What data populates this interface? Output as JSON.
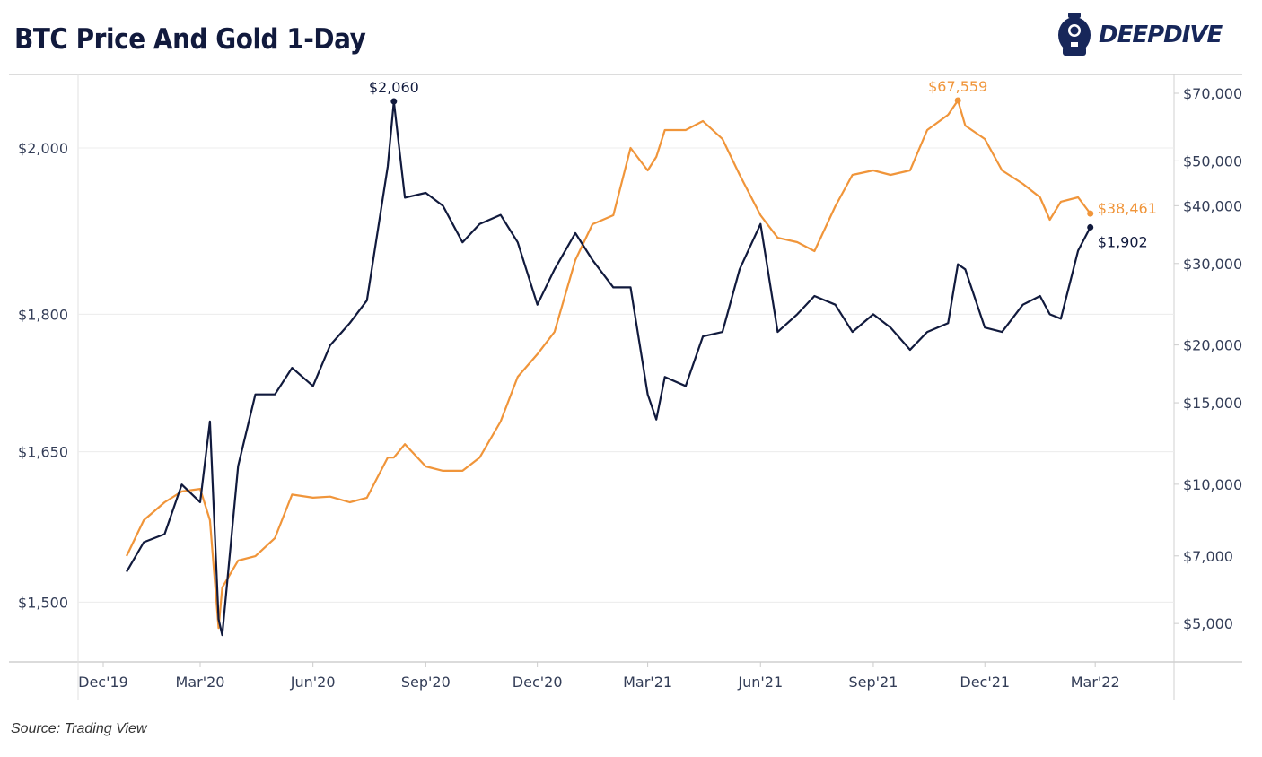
{
  "title": "BTC Price And Gold 1-Day",
  "logo": {
    "text": "DEEPDIVE",
    "icon": "diver-helmet-icon"
  },
  "source": "Source: Trading View",
  "colors": {
    "gold": "#111a3d",
    "btc": "#f0953a",
    "grid": "#ececec",
    "text": "#333d57"
  },
  "chart_data": {
    "type": "line",
    "title": "BTC Price And Gold 1-Day",
    "x_ticks": [
      {
        "date": "2019-12-01",
        "label": "Dec'19"
      },
      {
        "date": "2020-03-01",
        "label": "Mar'20"
      },
      {
        "date": "2020-06-01",
        "label": "Jun'20"
      },
      {
        "date": "2020-09-01",
        "label": "Sep'20"
      },
      {
        "date": "2020-12-01",
        "label": "Dec'20"
      },
      {
        "date": "2021-03-01",
        "label": "Mar'21"
      },
      {
        "date": "2021-06-01",
        "label": "Jun'21"
      },
      {
        "date": "2021-09-01",
        "label": "Sep'21"
      },
      {
        "date": "2021-12-01",
        "label": "Dec'21"
      },
      {
        "date": "2022-03-01",
        "label": "Mar'22"
      }
    ],
    "xlim": [
      "2019-11-20",
      "2022-04-10"
    ],
    "left_axis": {
      "series": "gold",
      "scale": "log",
      "ylim": [
        1450,
        2085
      ],
      "ticks": [
        {
          "value": 2000,
          "label": "$2,000"
        },
        {
          "value": 1800,
          "label": "$1,800"
        },
        {
          "value": 1650,
          "label": "$1,650"
        },
        {
          "value": 1500,
          "label": "$1,500"
        }
      ]
    },
    "right_axis": {
      "series": "btc",
      "scale": "log",
      "ylim": [
        4500,
        73000
      ],
      "ticks": [
        {
          "value": 70000,
          "label": "$70,000"
        },
        {
          "value": 50000,
          "label": "$50,000"
        },
        {
          "value": 40000,
          "label": "$40,000"
        },
        {
          "value": 30000,
          "label": "$30,000"
        },
        {
          "value": 20000,
          "label": "$20,000"
        },
        {
          "value": 15000,
          "label": "$15,000"
        },
        {
          "value": 10000,
          "label": "$10,000"
        },
        {
          "value": 7000,
          "label": "$7,000"
        },
        {
          "value": 5000,
          "label": "$5,000"
        }
      ]
    },
    "grid": true,
    "series": [
      {
        "key": "gold",
        "axis": "left",
        "color": "#111a3d",
        "points": [
          [
            "2020-01-01",
            1529
          ],
          [
            "2020-01-15",
            1558
          ],
          [
            "2020-02-01",
            1566
          ],
          [
            "2020-02-15",
            1616
          ],
          [
            "2020-03-01",
            1598
          ],
          [
            "2020-03-09",
            1682
          ],
          [
            "2020-03-16",
            1484
          ],
          [
            "2020-03-19",
            1469
          ],
          [
            "2020-04-01",
            1635
          ],
          [
            "2020-04-15",
            1711
          ],
          [
            "2020-05-01",
            1711
          ],
          [
            "2020-05-15",
            1740
          ],
          [
            "2020-06-01",
            1720
          ],
          [
            "2020-06-15",
            1765
          ],
          [
            "2020-07-01",
            1790
          ],
          [
            "2020-07-15",
            1816
          ],
          [
            "2020-08-01",
            1977
          ],
          [
            "2020-08-06",
            2060
          ],
          [
            "2020-08-15",
            1938
          ],
          [
            "2020-09-01",
            1944
          ],
          [
            "2020-09-15",
            1928
          ],
          [
            "2020-10-01",
            1884
          ],
          [
            "2020-10-15",
            1906
          ],
          [
            "2020-11-01",
            1917
          ],
          [
            "2020-11-15",
            1884
          ],
          [
            "2020-12-01",
            1811
          ],
          [
            "2020-12-15",
            1852
          ],
          [
            "2021-01-01",
            1895
          ],
          [
            "2021-01-15",
            1863
          ],
          [
            "2021-02-01",
            1831
          ],
          [
            "2021-02-15",
            1831
          ],
          [
            "2021-03-01",
            1711
          ],
          [
            "2021-03-08",
            1684
          ],
          [
            "2021-03-15",
            1730
          ],
          [
            "2021-04-01",
            1720
          ],
          [
            "2021-04-15",
            1775
          ],
          [
            "2021-05-01",
            1780
          ],
          [
            "2021-05-15",
            1852
          ],
          [
            "2021-06-01",
            1906
          ],
          [
            "2021-06-15",
            1780
          ],
          [
            "2021-07-01",
            1800
          ],
          [
            "2021-07-15",
            1821
          ],
          [
            "2021-08-01",
            1811
          ],
          [
            "2021-08-15",
            1780
          ],
          [
            "2021-09-01",
            1800
          ],
          [
            "2021-09-15",
            1785
          ],
          [
            "2021-10-01",
            1760
          ],
          [
            "2021-10-15",
            1780
          ],
          [
            "2021-11-01",
            1790
          ],
          [
            "2021-11-09",
            1858
          ],
          [
            "2021-11-15",
            1852
          ],
          [
            "2021-12-01",
            1785
          ],
          [
            "2021-12-15",
            1780
          ],
          [
            "2022-01-01",
            1811
          ],
          [
            "2022-01-15",
            1821
          ],
          [
            "2022-01-23",
            1800
          ],
          [
            "2022-02-01",
            1795
          ],
          [
            "2022-02-15",
            1874
          ],
          [
            "2022-02-25",
            1902
          ]
        ]
      },
      {
        "key": "btc",
        "axis": "right",
        "color": "#f0953a",
        "points": [
          [
            "2020-01-01",
            6993
          ],
          [
            "2020-01-15",
            8360
          ],
          [
            "2020-02-01",
            9140
          ],
          [
            "2020-02-15",
            9650
          ],
          [
            "2020-03-01",
            9770
          ],
          [
            "2020-03-09",
            8360
          ],
          [
            "2020-03-16",
            4890
          ],
          [
            "2020-03-19",
            5980
          ],
          [
            "2020-04-01",
            6840
          ],
          [
            "2020-04-15",
            6990
          ],
          [
            "2020-05-01",
            7650
          ],
          [
            "2020-05-15",
            9500
          ],
          [
            "2020-06-01",
            9350
          ],
          [
            "2020-06-15",
            9400
          ],
          [
            "2020-07-01",
            9140
          ],
          [
            "2020-07-15",
            9350
          ],
          [
            "2020-08-01",
            11420
          ],
          [
            "2020-08-06",
            11420
          ],
          [
            "2020-08-15",
            12210
          ],
          [
            "2020-09-01",
            10930
          ],
          [
            "2020-09-15",
            10690
          ],
          [
            "2020-10-01",
            10690
          ],
          [
            "2020-10-15",
            11420
          ],
          [
            "2020-11-01",
            13660
          ],
          [
            "2020-11-15",
            17070
          ],
          [
            "2020-12-01",
            19100
          ],
          [
            "2020-12-15",
            21350
          ],
          [
            "2021-01-01",
            30520
          ],
          [
            "2021-01-15",
            36480
          ],
          [
            "2021-02-01",
            38150
          ],
          [
            "2021-02-15",
            53320
          ],
          [
            "2021-03-01",
            47680
          ],
          [
            "2021-03-08",
            51000
          ],
          [
            "2021-03-15",
            58300
          ],
          [
            "2021-04-01",
            58300
          ],
          [
            "2021-04-15",
            60950
          ],
          [
            "2021-05-01",
            55750
          ],
          [
            "2021-05-15",
            46650
          ],
          [
            "2021-06-01",
            38150
          ],
          [
            "2021-06-15",
            34100
          ],
          [
            "2021-07-01",
            33360
          ],
          [
            "2021-07-15",
            31900
          ],
          [
            "2021-08-01",
            39890
          ],
          [
            "2021-08-15",
            46620
          ],
          [
            "2021-09-01",
            47680
          ],
          [
            "2021-09-15",
            46620
          ],
          [
            "2021-10-01",
            47680
          ],
          [
            "2021-10-15",
            58300
          ],
          [
            "2021-11-01",
            62890
          ],
          [
            "2021-11-09",
            67559
          ],
          [
            "2021-11-15",
            59600
          ],
          [
            "2021-12-01",
            55750
          ],
          [
            "2021-12-15",
            47680
          ],
          [
            "2022-01-01",
            44600
          ],
          [
            "2022-01-15",
            41700
          ],
          [
            "2022-01-23",
            37300
          ],
          [
            "2022-02-01",
            40800
          ],
          [
            "2022-02-15",
            41700
          ],
          [
            "2022-02-25",
            38461
          ]
        ]
      }
    ],
    "annotations": [
      {
        "series": "gold",
        "date": "2020-08-06",
        "label": "$2,060",
        "position": "above"
      },
      {
        "series": "btc",
        "date": "2021-11-09",
        "label": "$67,559",
        "position": "above"
      },
      {
        "series": "btc",
        "date": "2022-02-25",
        "label": "$38,461",
        "position": "right"
      },
      {
        "series": "gold",
        "date": "2022-02-25",
        "label": "$1,902",
        "position": "right"
      }
    ]
  }
}
